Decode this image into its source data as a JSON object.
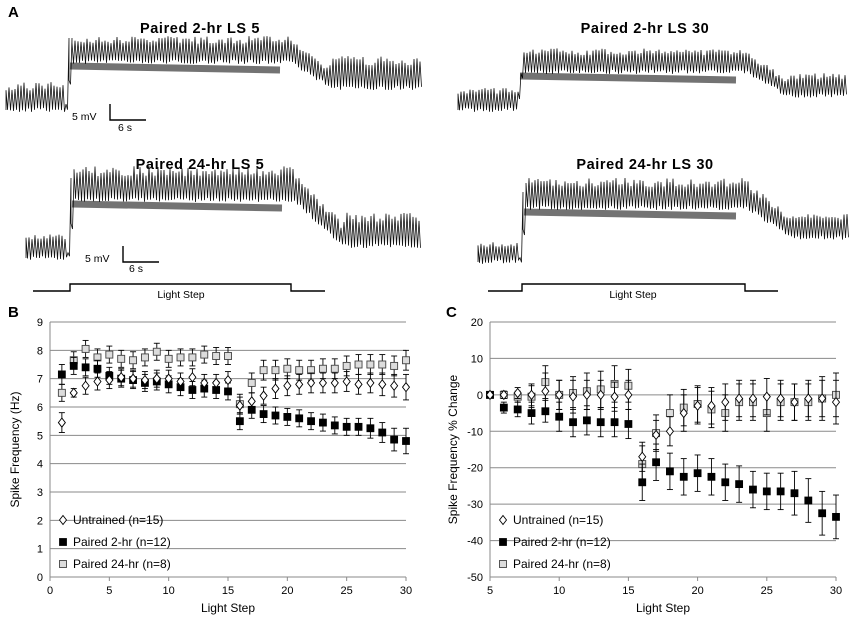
{
  "panel_a": {
    "letter": "A",
    "traces": [
      {
        "title": "Paired 2-hr LS 5",
        "scale_mv": "5 mV",
        "scale_s": "6 s"
      },
      {
        "title": "Paired 2-hr LS 30"
      },
      {
        "title": "Paired 24-hr LS 5",
        "scale_mv": "5 mV",
        "scale_s": "6 s"
      },
      {
        "title": "Paired 24-hr LS 30"
      }
    ],
    "light_step_label": "Light Step"
  },
  "chart_data": [
    {
      "panel": "B",
      "type": "scatter",
      "title": "",
      "xlabel": "Light Step",
      "ylabel": "Spike Frequency (Hz)",
      "xlim": [
        0,
        30
      ],
      "ylim": [
        0,
        9
      ],
      "xticks": [
        "0",
        "5",
        "10",
        "15",
        "20",
        "25",
        "30"
      ],
      "yticks": [
        "0",
        "1",
        "2",
        "3",
        "4",
        "5",
        "6",
        "7",
        "8",
        "9"
      ],
      "grid": "horizontal",
      "legend_position": "bottom-left",
      "x": [
        1,
        2,
        3,
        4,
        5,
        6,
        7,
        8,
        9,
        10,
        11,
        12,
        13,
        14,
        15,
        16,
        17,
        18,
        19,
        20,
        21,
        22,
        23,
        24,
        25,
        26,
        27,
        28,
        29,
        30
      ],
      "series": [
        {
          "name": "Untrained (n=15)",
          "marker": "diamond-open",
          "values": [
            5.45,
            6.5,
            6.75,
            6.9,
            6.95,
            7.05,
            7.0,
            6.95,
            7.0,
            7.0,
            6.9,
            7.05,
            6.85,
            6.85,
            6.95,
            6.05,
            6.2,
            6.4,
            6.65,
            6.75,
            6.8,
            6.85,
            6.85,
            6.85,
            6.9,
            6.8,
            6.85,
            6.8,
            6.75,
            6.7
          ],
          "errors": [
            0.35,
            0.15,
            0.3,
            0.3,
            0.3,
            0.3,
            0.3,
            0.3,
            0.3,
            0.3,
            0.3,
            0.3,
            0.3,
            0.3,
            0.3,
            0.3,
            0.3,
            0.3,
            0.35,
            0.35,
            0.35,
            0.35,
            0.35,
            0.35,
            0.35,
            0.35,
            0.35,
            0.4,
            0.4,
            0.45
          ]
        },
        {
          "name": "Paired 2-hr (n=12)",
          "marker": "square-filled",
          "values": [
            7.15,
            7.45,
            7.4,
            7.35,
            7.1,
            7.0,
            6.95,
            6.85,
            6.9,
            6.8,
            6.7,
            6.6,
            6.65,
            6.6,
            6.55,
            5.5,
            5.9,
            5.75,
            5.7,
            5.65,
            5.6,
            5.5,
            5.45,
            5.35,
            5.3,
            5.3,
            5.25,
            5.1,
            4.85,
            4.8
          ],
          "errors": [
            0.35,
            0.3,
            0.3,
            0.3,
            0.3,
            0.3,
            0.3,
            0.3,
            0.3,
            0.3,
            0.3,
            0.3,
            0.3,
            0.3,
            0.3,
            0.3,
            0.3,
            0.3,
            0.3,
            0.3,
            0.3,
            0.3,
            0.3,
            0.3,
            0.3,
            0.3,
            0.35,
            0.35,
            0.4,
            0.45
          ]
        },
        {
          "name": "Paired 24-hr (n=8)",
          "marker": "square-open",
          "values": [
            6.5,
            7.65,
            8.05,
            7.75,
            7.85,
            7.7,
            7.65,
            7.75,
            7.95,
            7.7,
            7.75,
            7.75,
            7.85,
            7.8,
            7.8,
            6.1,
            6.85,
            7.3,
            7.3,
            7.35,
            7.3,
            7.3,
            7.35,
            7.35,
            7.45,
            7.5,
            7.5,
            7.5,
            7.45,
            7.65
          ],
          "errors": [
            0.3,
            0.3,
            0.3,
            0.3,
            0.3,
            0.3,
            0.3,
            0.3,
            0.3,
            0.3,
            0.3,
            0.3,
            0.3,
            0.3,
            0.3,
            0.35,
            0.35,
            0.35,
            0.35,
            0.35,
            0.35,
            0.35,
            0.35,
            0.35,
            0.35,
            0.35,
            0.35,
            0.35,
            0.35,
            0.35
          ]
        }
      ]
    },
    {
      "panel": "C",
      "type": "scatter",
      "title": "",
      "xlabel": "Light Step",
      "ylabel": "Spike Frequency % Change",
      "xlim": [
        5,
        30
      ],
      "ylim": [
        -50,
        20
      ],
      "xticks": [
        "5",
        "10",
        "15",
        "20",
        "25",
        "30"
      ],
      "yticks": [
        "-50",
        "-40",
        "-30",
        "-20",
        "-10",
        "0",
        "10",
        "20"
      ],
      "grid": "horizontal",
      "legend_position": "bottom-left",
      "x": [
        5,
        6,
        7,
        8,
        9,
        10,
        11,
        12,
        13,
        14,
        15,
        16,
        17,
        18,
        19,
        20,
        21,
        22,
        23,
        24,
        25,
        26,
        27,
        28,
        29,
        30
      ],
      "series": [
        {
          "name": "Untrained (n=15)",
          "marker": "diamond-open",
          "values": [
            0,
            0,
            0.5,
            0,
            1,
            0,
            -0.5,
            0,
            0,
            -0.5,
            0,
            -17,
            -11,
            -10,
            -5,
            -3,
            -3,
            -2,
            -1,
            -1,
            -0.5,
            -1,
            -2,
            -1,
            -1,
            -2
          ],
          "errors": [
            0,
            1,
            1.5,
            3,
            5,
            4,
            4.5,
            4,
            4,
            4,
            4,
            4,
            4,
            4,
            5,
            5,
            5,
            5,
            5,
            5,
            5,
            5,
            5,
            5,
            5,
            6
          ]
        },
        {
          "name": "Paired 2-hr (n=12)",
          "marker": "square-filled",
          "values": [
            0,
            -3.5,
            -4,
            -5,
            -4.5,
            -6,
            -7.5,
            -7,
            -7.5,
            -7.5,
            -8,
            -24,
            -18.5,
            -21,
            -22.5,
            -21.5,
            -22.5,
            -24,
            -24.5,
            -26,
            -26.5,
            -26.5,
            -27,
            -29,
            -32.5,
            -33.5
          ],
          "errors": [
            0,
            1.5,
            2,
            3,
            3,
            4,
            4,
            4,
            4,
            4,
            4,
            5,
            5,
            5,
            5,
            5,
            5,
            5,
            5,
            5,
            5,
            5,
            6,
            6,
            6,
            6
          ]
        },
        {
          "name": "Paired 24-hr (n=8)",
          "marker": "square-open",
          "values": [
            0,
            0,
            -0.5,
            -0.5,
            3.5,
            0,
            0.5,
            1,
            1.5,
            3,
            2.5,
            -19,
            -10.5,
            -5,
            -3.5,
            -2.5,
            -4,
            -5,
            -2,
            -2,
            -5,
            -2,
            -2,
            -2,
            -1,
            0
          ],
          "errors": [
            0,
            1,
            1.5,
            3,
            4.5,
            4,
            4.5,
            5,
            5,
            5,
            4.5,
            5,
            5,
            5,
            5,
            5,
            5,
            5,
            5,
            5,
            5,
            5,
            5,
            5,
            6,
            6
          ]
        }
      ]
    }
  ]
}
